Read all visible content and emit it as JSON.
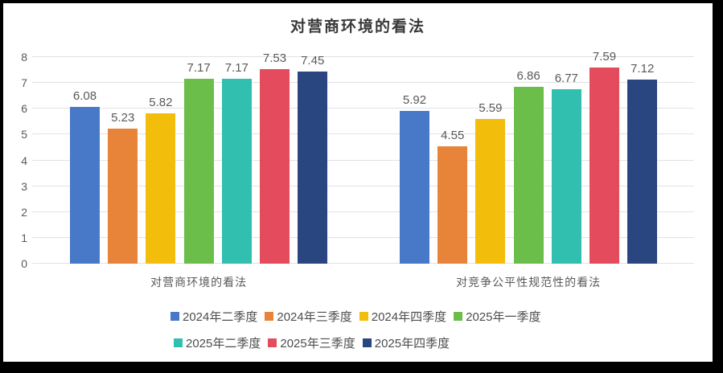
{
  "chart_data": {
    "type": "bar",
    "title": "对营商环境的看法",
    "categories": [
      "对营商环境的看法",
      "对竞争公平性规范性的看法"
    ],
    "series": [
      {
        "name": "2024年二季度",
        "color": "#4878C8",
        "values": [
          6.08,
          5.92
        ]
      },
      {
        "name": "2024年三季度",
        "color": "#E8833A",
        "values": [
          5.23,
          4.55
        ]
      },
      {
        "name": "2024年四季度",
        "color": "#F2BE0B",
        "values": [
          5.82,
          5.59
        ]
      },
      {
        "name": "2025年一季度",
        "color": "#6CBE4B",
        "values": [
          7.17,
          6.86
        ]
      },
      {
        "name": "2025年二季度",
        "color": "#31BFB0",
        "values": [
          7.17,
          6.77
        ]
      },
      {
        "name": "2025年三季度",
        "color": "#E44C5D",
        "values": [
          7.53,
          7.59
        ]
      },
      {
        "name": "2025年四季度",
        "color": "#294680",
        "values": [
          7.45,
          7.12
        ]
      }
    ],
    "ylim": [
      0,
      8
    ],
    "yticks": [
      0,
      1,
      2,
      3,
      4,
      5,
      6,
      7,
      8
    ],
    "grid": "horizontal",
    "gridline_color": "#e2e2e6",
    "data_labels": true,
    "legend_position": "bottom",
    "legend_rows": [
      [
        0,
        1,
        2,
        3
      ],
      [
        4,
        5,
        6
      ]
    ]
  }
}
